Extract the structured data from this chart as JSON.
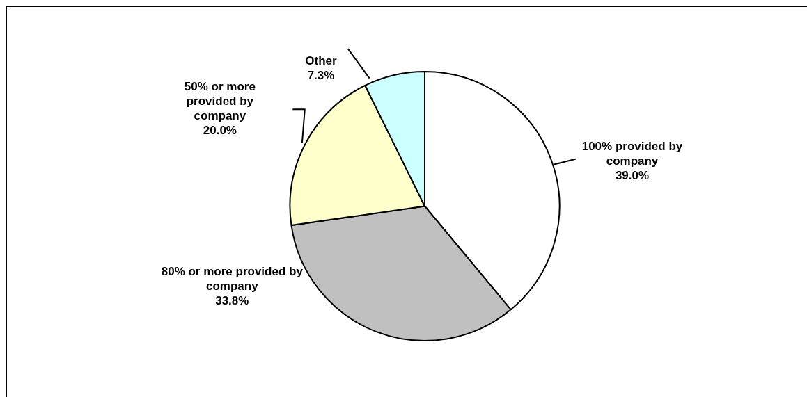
{
  "chart_data": {
    "type": "pie",
    "categories": [
      "100% provided by company",
      "80% or more provided by company",
      "50% or more provided by company",
      "Other"
    ],
    "values": [
      39.0,
      33.8,
      20.0,
      7.3
    ],
    "colors": [
      "#ffffff",
      "#c0c0c0",
      "#ffffcc",
      "#ccffff"
    ],
    "value_labels": [
      "39.0%",
      "33.8%",
      "20.0%",
      "7.3%"
    ],
    "legend": false
  }
}
